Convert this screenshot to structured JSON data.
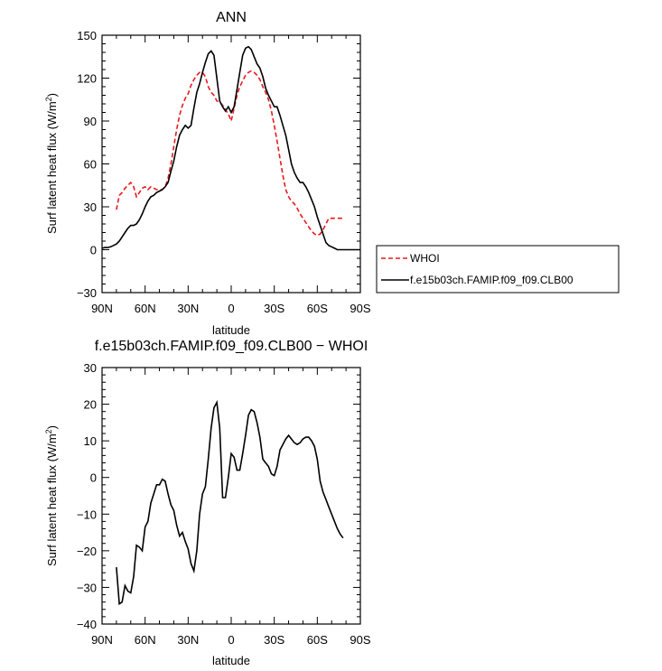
{
  "chart_data": [
    {
      "type": "line",
      "title": "ANN",
      "xlabel": "latitude",
      "ylabel": "Surf latent heat flux (W/m",
      "ylabel_sup": "2",
      "ylabel_close": ")",
      "xlim": [
        90,
        -90
      ],
      "ylim": [
        -30,
        150
      ],
      "x_ticks": [
        90,
        60,
        30,
        0,
        -30,
        -60,
        -90
      ],
      "x_tick_labels": [
        "90N",
        "60N",
        "30N",
        "0",
        "30S",
        "60S",
        "90S"
      ],
      "y_ticks": [
        -30,
        0,
        30,
        60,
        90,
        120,
        150
      ],
      "y_tick_labels": [
        "−30",
        "0",
        "30",
        "60",
        "90",
        "120",
        "150"
      ],
      "legend": {
        "placement": "right",
        "entries": [
          "WHOI",
          "f.e15b03ch.FAMIP.f09_f09.CLB00"
        ]
      },
      "series": [
        {
          "name": "WHOI",
          "color": "#e8191e",
          "dash": "dashed",
          "x": [
            80,
            78,
            76,
            74,
            72,
            70,
            68,
            66,
            64,
            62,
            60,
            58,
            56,
            54,
            52,
            50,
            48,
            46,
            44,
            42,
            40,
            38,
            36,
            34,
            32,
            30,
            28,
            26,
            24,
            22,
            20,
            18,
            16,
            14,
            12,
            10,
            8,
            6,
            4,
            2,
            0,
            -2,
            -4,
            -6,
            -8,
            -10,
            -12,
            -14,
            -16,
            -18,
            -20,
            -22,
            -24,
            -26,
            -28,
            -30,
            -32,
            -34,
            -36,
            -38,
            -40,
            -42,
            -44,
            -46,
            -48,
            -50,
            -52,
            -54,
            -56,
            -58,
            -60,
            -62,
            -64,
            -66,
            -68,
            -70,
            -72,
            -74,
            -76,
            -78
          ],
          "y": [
            28,
            38,
            40,
            43,
            45,
            47,
            44,
            37,
            40,
            43,
            44,
            42,
            44,
            43,
            42,
            42,
            42,
            44,
            50,
            60,
            72,
            84,
            94,
            101,
            106,
            109,
            115,
            119,
            122,
            124,
            124,
            121,
            114,
            110,
            108,
            104,
            103,
            101,
            98,
            95,
            90,
            99,
            108,
            114,
            118,
            122,
            124,
            125,
            124,
            122,
            119,
            114,
            110,
            105,
            97,
            87,
            76,
            64,
            52,
            42,
            37,
            34,
            32,
            29,
            25,
            22,
            19,
            16,
            13,
            11,
            10,
            11,
            14,
            18,
            22,
            22,
            22,
            22,
            22,
            22
          ]
        },
        {
          "name": "f.e15b03ch.FAMIP.f09_f09.CLB00",
          "color": "#000000",
          "dash": "solid",
          "x": [
            90,
            88,
            86,
            84,
            82,
            80,
            78,
            76,
            74,
            72,
            70,
            68,
            66,
            64,
            62,
            60,
            58,
            56,
            54,
            52,
            50,
            48,
            46,
            44,
            42,
            40,
            38,
            36,
            34,
            32,
            30,
            28,
            26,
            24,
            22,
            20,
            18,
            16,
            14,
            12,
            10,
            8,
            6,
            4,
            2,
            0,
            -2,
            -4,
            -6,
            -8,
            -10,
            -12,
            -14,
            -16,
            -18,
            -20,
            -22,
            -24,
            -26,
            -28,
            -30,
            -32,
            -34,
            -36,
            -38,
            -40,
            -42,
            -44,
            -46,
            -48,
            -50,
            -52,
            -54,
            -56,
            -58,
            -60,
            -62,
            -64,
            -66,
            -68,
            -70,
            -72,
            -74,
            -76,
            -78,
            -80,
            -82,
            -84,
            -86,
            -88,
            -90
          ],
          "y": [
            1,
            1.5,
            1.5,
            2,
            3,
            4,
            6,
            9,
            12,
            15,
            17,
            17,
            18,
            21,
            25,
            30,
            34,
            37,
            38,
            40,
            41,
            42,
            44,
            47,
            55,
            62,
            72,
            80,
            84,
            87,
            85,
            87,
            99,
            110,
            116,
            124,
            131,
            137,
            139,
            136,
            120,
            104,
            100,
            97,
            100,
            96,
            100,
            112,
            124,
            136,
            141,
            142,
            140,
            135,
            130,
            127,
            121,
            113,
            108,
            104,
            100,
            100,
            94,
            87,
            80,
            70,
            60,
            54,
            50,
            47,
            47,
            44,
            40,
            35,
            30,
            23,
            17,
            11,
            5,
            3,
            2,
            1,
            0,
            0,
            0,
            0,
            0,
            0,
            0,
            0,
            0
          ]
        }
      ]
    },
    {
      "type": "line",
      "title": "f.e15b03ch.FAMIP.f09_f09.CLB00 − WHOI",
      "xlabel": "latitude",
      "ylabel": "Surf latent heat flux (W/m",
      "ylabel_sup": "2",
      "ylabel_close": ")",
      "xlim": [
        90,
        -90
      ],
      "ylim": [
        -40,
        30
      ],
      "x_ticks": [
        90,
        60,
        30,
        0,
        -30,
        -60,
        -90
      ],
      "x_tick_labels": [
        "90N",
        "60N",
        "30N",
        "0",
        "30S",
        "60S",
        "90S"
      ],
      "y_ticks": [
        -40,
        -30,
        -20,
        -10,
        0,
        10,
        20,
        30
      ],
      "y_tick_labels": [
        "−40",
        "−30",
        "−20",
        "−10",
        "0",
        "10",
        "20",
        "30"
      ],
      "series": [
        {
          "color": "#000000",
          "dash": "solid",
          "x": [
            80,
            78,
            76,
            74,
            72,
            70,
            68,
            66,
            64,
            62,
            60,
            58,
            56,
            54,
            52,
            50,
            48,
            46,
            44,
            42,
            40,
            38,
            36,
            34,
            32,
            30,
            28,
            26,
            24,
            22,
            20,
            18,
            16,
            14,
            12,
            10,
            8,
            6,
            4,
            2,
            0,
            -2,
            -4,
            -6,
            -8,
            -10,
            -12,
            -14,
            -16,
            -18,
            -20,
            -22,
            -24,
            -26,
            -28,
            -30,
            -32,
            -34,
            -36,
            -38,
            -40,
            -42,
            -44,
            -46,
            -48,
            -50,
            -52,
            -54,
            -56,
            -58,
            -60,
            -62,
            -64,
            -66,
            -68,
            -70,
            -72,
            -74,
            -76,
            -78
          ],
          "y": [
            -24.5,
            -34.5,
            -34,
            -29.5,
            -31,
            -31.5,
            -27,
            -18.5,
            -19,
            -20,
            -13.5,
            -12,
            -7,
            -4.5,
            -2,
            -2,
            -0.5,
            -1,
            -4.5,
            -7.5,
            -9,
            -13,
            -16,
            -15,
            -17.5,
            -19.5,
            -23.5,
            -25.5,
            -20,
            -10,
            -4.5,
            -2.5,
            5,
            13.5,
            19,
            20.5,
            13.5,
            -5.5,
            -5.5,
            0,
            6.5,
            5.5,
            2,
            2,
            6.5,
            11.5,
            17,
            18.5,
            18,
            15,
            11,
            5,
            4,
            3,
            1,
            0.5,
            3,
            7.5,
            9,
            10.5,
            11.5,
            10.5,
            9.5,
            9,
            9.5,
            10.5,
            11,
            11,
            10,
            8.5,
            5,
            -1,
            -4,
            -6,
            -8,
            -10,
            -12,
            -14,
            -15.5,
            -16.5
          ]
        }
      ]
    }
  ]
}
